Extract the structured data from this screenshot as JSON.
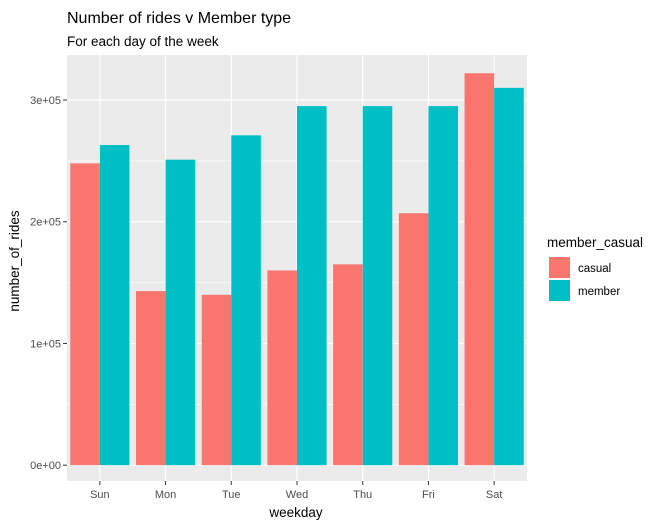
{
  "chart_data": {
    "type": "bar",
    "title": "Number of rides v Member type",
    "subtitle": "For each day of the week",
    "xlabel": "weekday",
    "ylabel": "number_of_rides",
    "categories": [
      "Sun",
      "Mon",
      "Tue",
      "Wed",
      "Thu",
      "Fri",
      "Sat"
    ],
    "series": [
      {
        "name": "casual",
        "color": "#F8766D",
        "values": [
          248000,
          143000,
          140000,
          160000,
          165000,
          207000,
          322000
        ]
      },
      {
        "name": "member",
        "color": "#00BFC4",
        "values": [
          263000,
          251000,
          271000,
          295000,
          295000,
          295000,
          310000
        ]
      }
    ],
    "ylim": [
      -13000,
      337000
    ],
    "yticks": [
      0,
      100000,
      200000,
      300000
    ],
    "ytick_labels": [
      "0e+00",
      "1e+05",
      "2e+05",
      "3e+05"
    ],
    "legend": {
      "title": "member_casual",
      "position": "right",
      "entries": [
        "casual",
        "member"
      ]
    },
    "grid": true,
    "background": "#EBEBEB"
  }
}
